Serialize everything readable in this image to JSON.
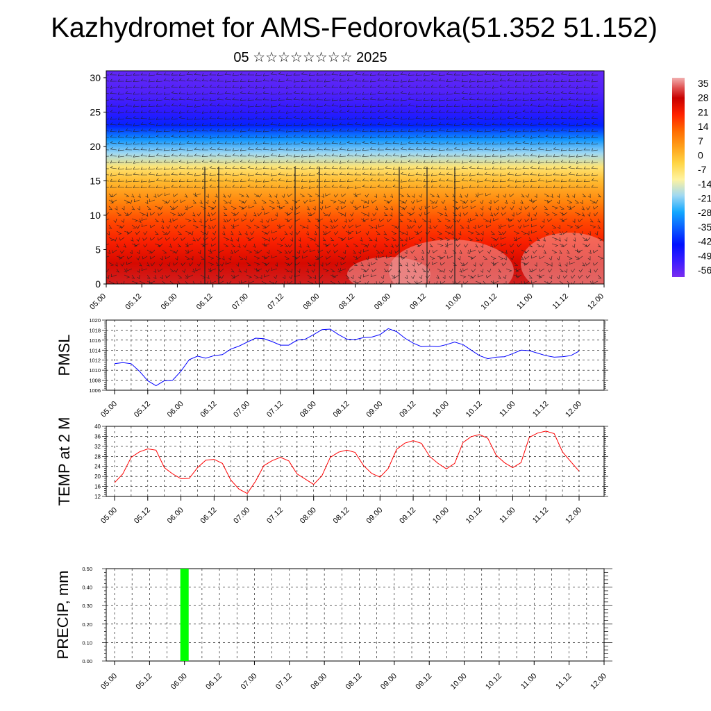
{
  "title": "Kazhydromet for AMS-Fedorovka(51.352 51.152)",
  "subtitle": "05 ☆☆☆☆☆☆☆☆ 2025",
  "chart_data": [
    {
      "type": "heatmap",
      "description_kind": "vertical temperature cross-section with wind barbs",
      "x_tick_labels": [
        "05.00",
        "05.12",
        "06.00",
        "06.12",
        "07.00",
        "07.12",
        "08.00",
        "08.12",
        "09.00",
        "09.12",
        "10.00",
        "10.12",
        "11.00",
        "11.12",
        "12.00"
      ],
      "y_ticks": [
        0,
        5,
        10,
        15,
        20,
        25,
        30
      ],
      "ylim": [
        0,
        31
      ],
      "colorbar_labels": [
        "35",
        "28",
        "21",
        "14",
        "7",
        "0",
        "-7",
        "-14",
        "-21",
        "-28",
        "-35",
        "-42",
        "-49",
        "-56"
      ],
      "colorbar_range": [
        -60,
        38
      ],
      "temperature_by_level": [
        {
          "level": 0,
          "value": 30
        },
        {
          "level": 3,
          "value": 26
        },
        {
          "level": 6,
          "value": 21
        },
        {
          "level": 9,
          "value": 16
        },
        {
          "level": 12,
          "value": 8
        },
        {
          "level": 15,
          "value": 0
        },
        {
          "level": 17,
          "value": -8
        },
        {
          "level": 19,
          "value": -20
        },
        {
          "level": 21,
          "value": -30
        },
        {
          "level": 23,
          "value": -42
        },
        {
          "level": 25,
          "value": -50
        },
        {
          "level": 28,
          "value": -55
        },
        {
          "level": 31,
          "value": -57
        }
      ],
      "colors": {
        "hot": "#c80000",
        "warm": "#ff6a00",
        "mild": "#ffd040",
        "cool": "#35a6ff",
        "cold": "#1a1aff",
        "coldest": "#7a2df0"
      }
    },
    {
      "type": "line",
      "ylabel": "PMSL",
      "x_tick_labels": [
        "05.00",
        "05.12",
        "06.00",
        "06.12",
        "07.00",
        "07.12",
        "08.00",
        "08.12",
        "09.00",
        "09.12",
        "10.00",
        "10.12",
        "11.00",
        "11.12",
        "12.00"
      ],
      "y_tick_labels": [
        "1006",
        "1008",
        "1010",
        "1012",
        "1014",
        "1016",
        "1018",
        "1020"
      ],
      "ylim": [
        1006,
        1020
      ],
      "series": [
        {
          "color": "#0000ff",
          "values": [
            1011.3,
            1011.5,
            1011.3,
            1009.8,
            1007.9,
            1006.9,
            1007.9,
            1008.0,
            1009.8,
            1012.1,
            1012.8,
            1012.4,
            1012.9,
            1013.1,
            1014.2,
            1014.8,
            1015.6,
            1016.4,
            1016.3,
            1015.7,
            1015.0,
            1015.0,
            1016.0,
            1016.2,
            1017.1,
            1018.1,
            1018.2,
            1017.1,
            1016.2,
            1016.1,
            1016.5,
            1016.6,
            1017.1,
            1018.3,
            1017.7,
            1016.4,
            1015.4,
            1014.7,
            1014.8,
            1014.7,
            1015.1,
            1015.6,
            1015.1,
            1014.0,
            1012.9,
            1012.3,
            1012.6,
            1012.7,
            1013.3,
            1014.0,
            1013.9,
            1013.4,
            1012.9,
            1012.6,
            1012.7,
            1012.9,
            1013.8
          ]
        }
      ]
    },
    {
      "type": "line",
      "ylabel": "TEMP at 2 M",
      "x_tick_labels": [
        "05.00",
        "05.12",
        "06.00",
        "06.12",
        "07.00",
        "07.12",
        "08.00",
        "08.12",
        "09.00",
        "09.12",
        "10.00",
        "10.12",
        "11.00",
        "11.12",
        "12.00"
      ],
      "y_tick_labels": [
        "12",
        "16",
        "20",
        "24",
        "28",
        "32",
        "36",
        "40"
      ],
      "ylim": [
        12,
        40
      ],
      "series": [
        {
          "color": "#ff0000",
          "values": [
            17.5,
            21.0,
            27.6,
            29.8,
            31.0,
            30.5,
            23.5,
            21.0,
            19.1,
            19.2,
            23.5,
            26.5,
            26.8,
            25.2,
            18.6,
            14.9,
            13.2,
            18.1,
            24.3,
            26.3,
            27.6,
            26.2,
            21.0,
            18.9,
            16.8,
            20.3,
            27.6,
            29.7,
            30.5,
            29.6,
            24.4,
            21.2,
            19.7,
            23.2,
            30.8,
            33.3,
            34.3,
            33.2,
            27.9,
            25.2,
            23.0,
            25.2,
            33.5,
            35.9,
            36.7,
            35.2,
            28.5,
            25.5,
            23.5,
            25.5,
            35.6,
            37.3,
            38.1,
            37.1,
            29.8,
            25.9,
            22.1
          ]
        }
      ]
    },
    {
      "type": "bar",
      "ylabel": "PRECIP, mm",
      "x_tick_labels": [
        "05.00",
        "05.12",
        "06.00",
        "06.12",
        "07.00",
        "07.12",
        "08.00",
        "08.12",
        "09.00",
        "09.12",
        "10.00",
        "10.12",
        "11.00",
        "11.12",
        "12.00"
      ],
      "y_tick_labels": [
        "0.00",
        "0.10",
        "0.20",
        "0.30",
        "0.40",
        "0.50"
      ],
      "ylim": [
        0,
        0.5
      ],
      "bars": [
        {
          "x": "06.00",
          "value": 0.5,
          "color": "#00ff00"
        }
      ]
    }
  ]
}
